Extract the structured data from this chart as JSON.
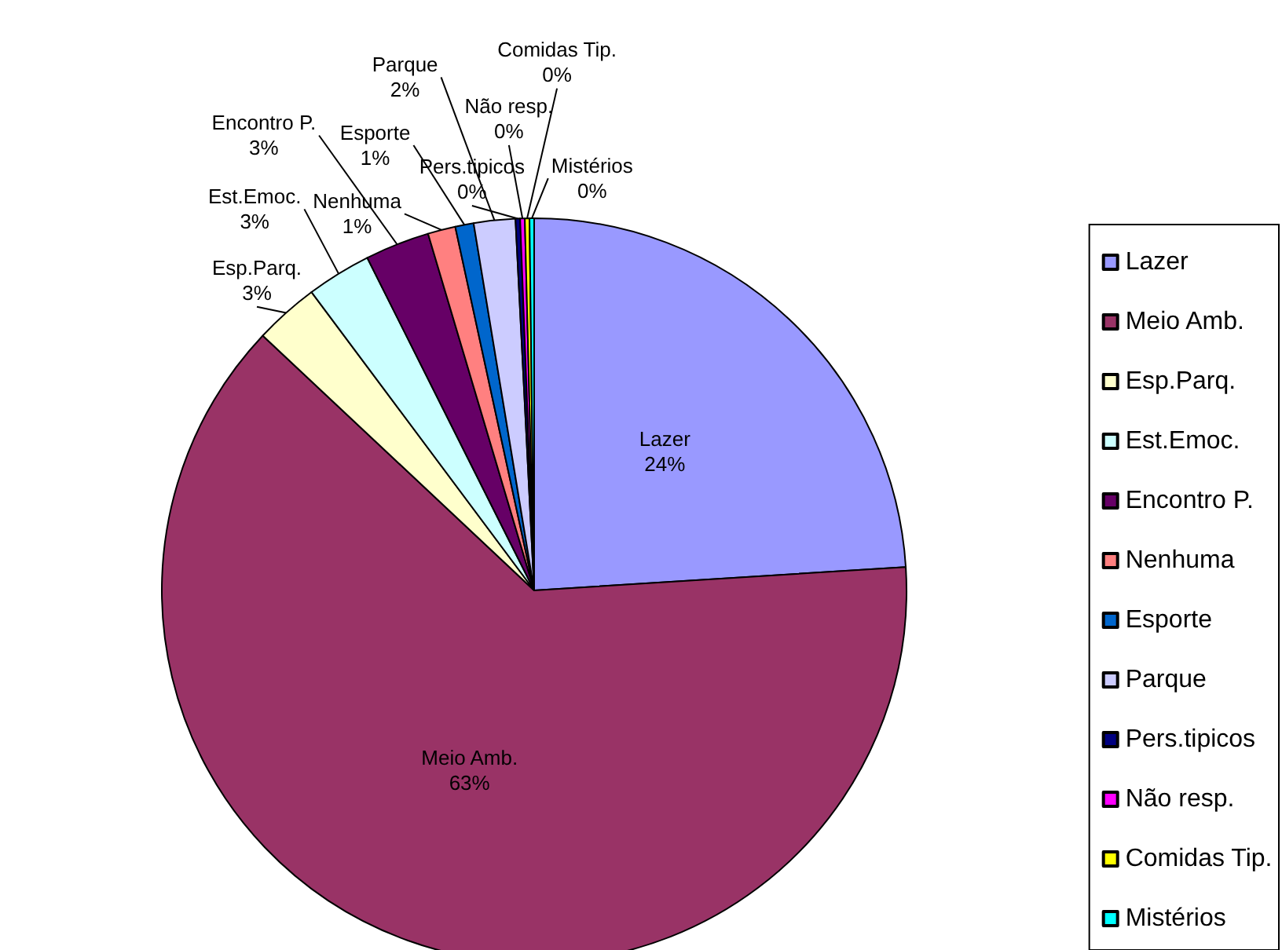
{
  "chart_data": {
    "type": "pie",
    "categories": [
      "Lazer",
      "Meio Amb.",
      "Esp.Parq.",
      "Est.Emoc.",
      "Encontro P.",
      "Nenhuma",
      "Esporte",
      "Parque",
      "Pers.tipicos",
      "Não resp.",
      "Comidas Tip.",
      "Mistérios"
    ],
    "values": [
      24,
      63,
      2.8,
      2.8,
      2.8,
      1.2,
      0.8,
      1.8,
      0.2,
      0.2,
      0.2,
      0.2
    ],
    "value_labels": [
      "24%",
      "63%",
      "3%",
      "3%",
      "3%",
      "1%",
      "1%",
      "2%",
      "0%",
      "0%",
      "0%",
      "0%"
    ],
    "colors": [
      "#9999ff",
      "#993366",
      "#ffffcc",
      "#ccffff",
      "#660066",
      "#ff8080",
      "#0066cc",
      "#ccccff",
      "#000080",
      "#ff00ff",
      "#ffff00",
      "#00ffff"
    ],
    "legend": "right"
  }
}
